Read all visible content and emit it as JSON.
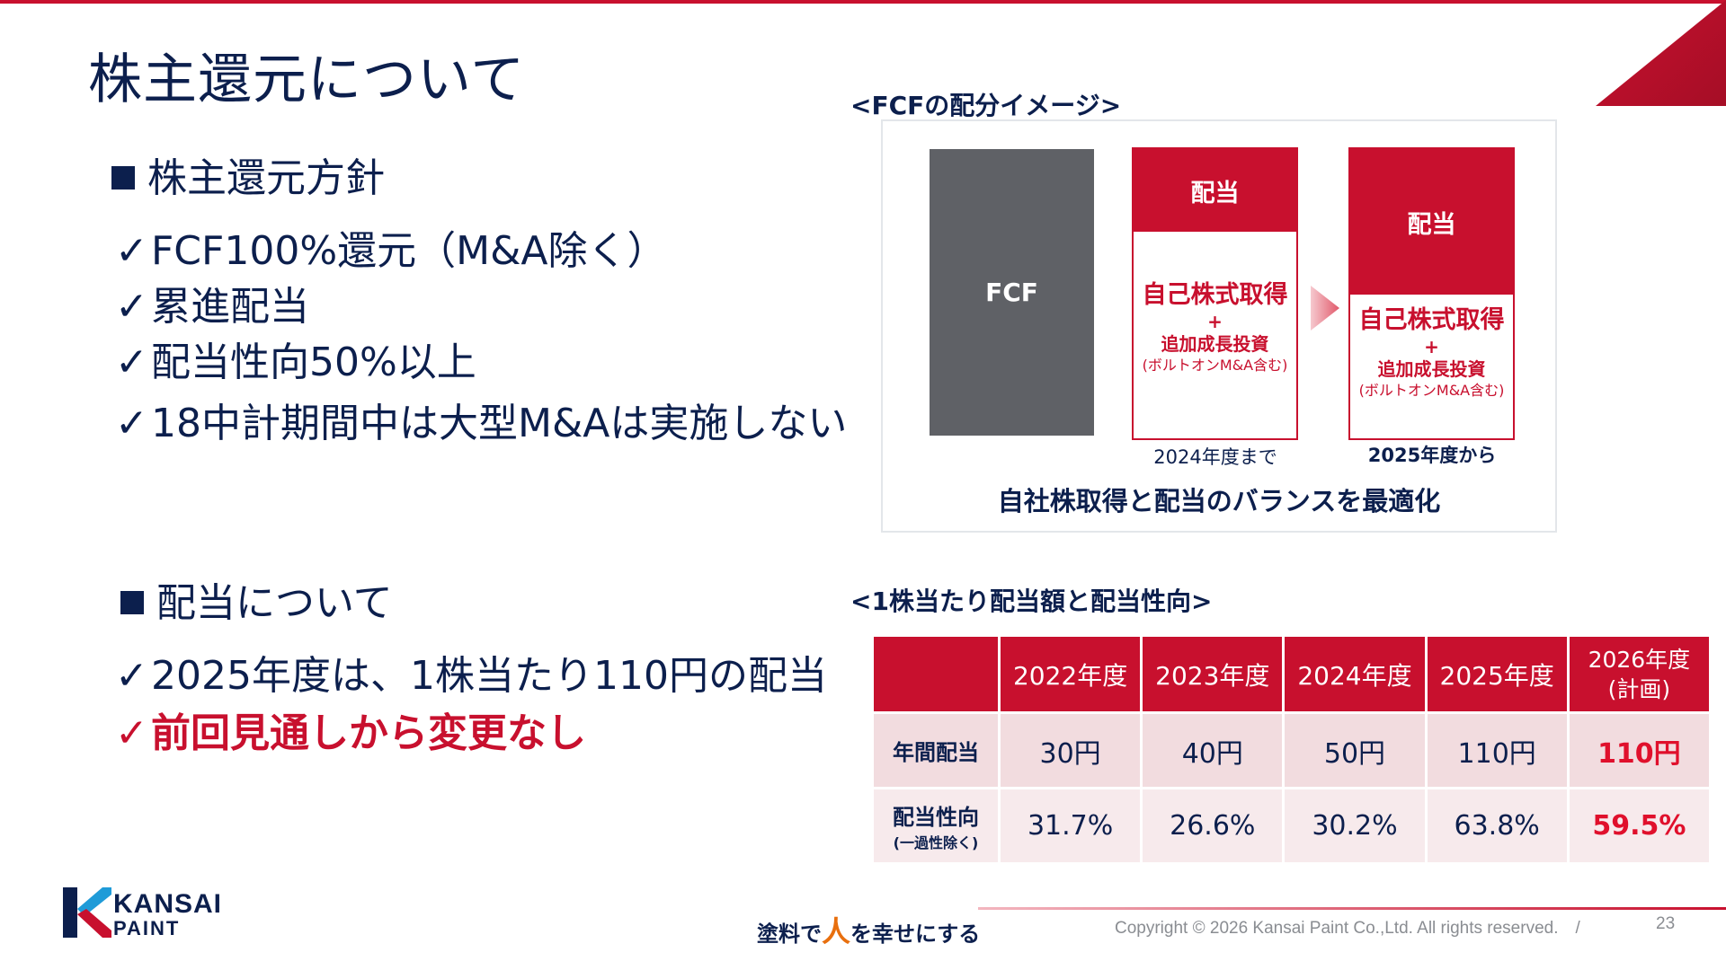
{
  "title": "株主還元について",
  "policy": {
    "heading": "株主還元方針",
    "items": [
      "FCF100%還元（M&A除く）",
      "累進配当",
      "配当性向50%以上",
      "18中計期間中は大型M&Aは実施しない"
    ]
  },
  "dividend": {
    "heading": "配当について",
    "items": [
      "2025年度は、1株当たり110円の配当",
      "前回見通しから変更なし"
    ]
  },
  "fcf_image": {
    "caption": "<FCFの配分イメージ>",
    "fcf_label": "FCF",
    "dividend_label": "配当",
    "buyback_label": "自己株式取得",
    "plus": "+",
    "growth_label": "追加成長投資",
    "bolton_label": "(ボルトオンM&A含む)",
    "until_2024": "2024年度まで",
    "from_2025": "2025年度から",
    "bottom_caption": "自社株取得と配当のバランスを最適化"
  },
  "table": {
    "caption": "<1株当たり配当額と配当性向>",
    "headers": [
      "2022年度",
      "2023年度",
      "2024年度",
      "2025年度"
    ],
    "plan_header": "2026年度",
    "plan_header_sub": "(計画)",
    "rows": [
      {
        "label": "年間配当",
        "sub": "",
        "values": [
          "30円",
          "40円",
          "50円",
          "110円"
        ],
        "plan": "110円"
      },
      {
        "label": "配当性向",
        "sub": "(一過性除く)",
        "values": [
          "31.7%",
          "26.6%",
          "30.2%",
          "63.8%"
        ],
        "plan": "59.5%"
      }
    ]
  },
  "footer": {
    "logo_line1": "KANSAI",
    "logo_line2": "PAINT",
    "slogan_pre": "塗料で",
    "slogan_hito": "人",
    "slogan_post": "を幸せにする",
    "copyright": "Copyright © 2026 Kansai Paint Co.,Ltd. All rights reserved.　/",
    "page": "23"
  },
  "colors": {
    "navy": "#0c1f4d",
    "red": "#c8102e",
    "gray": "#5f6166",
    "highlight": "#e0102c"
  }
}
